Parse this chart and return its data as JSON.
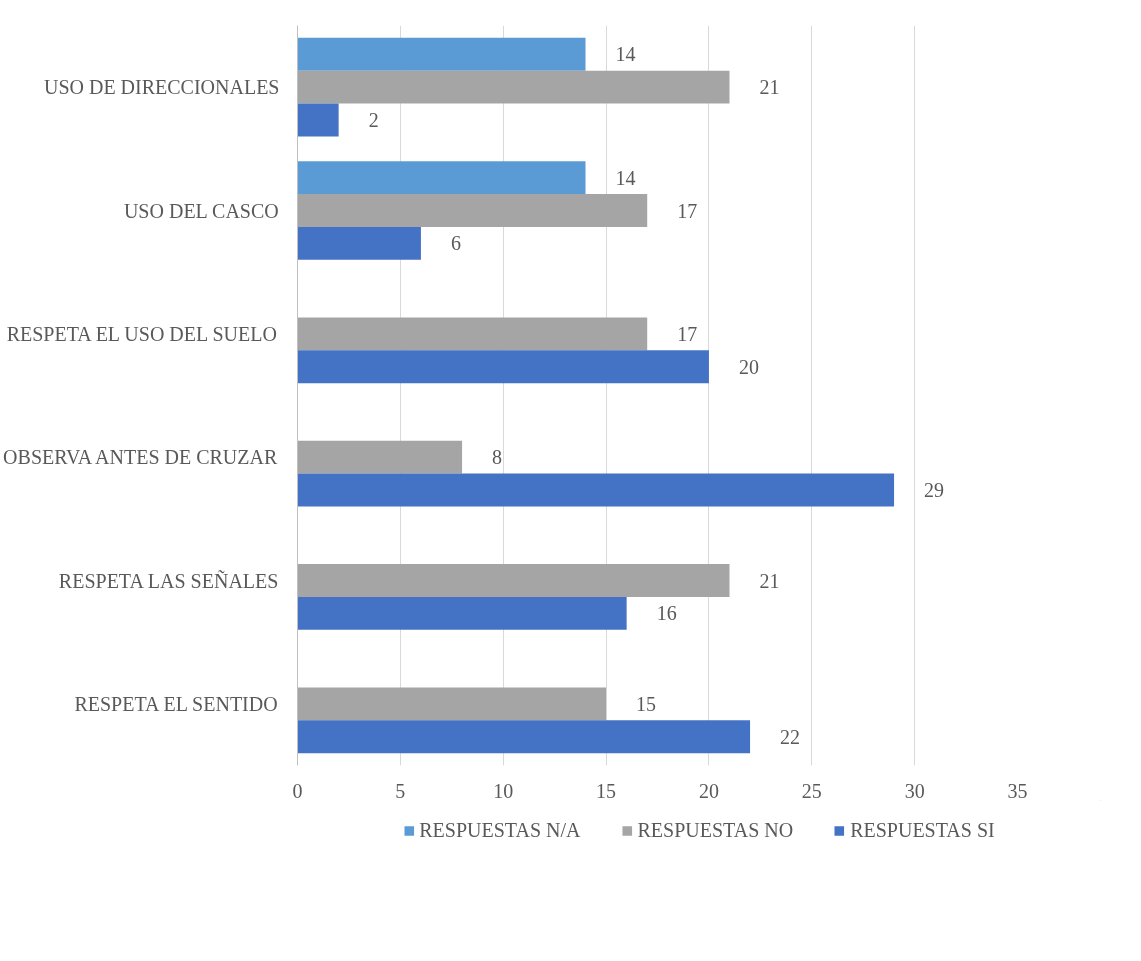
{
  "chart_data": {
    "type": "bar",
    "orientation": "horizontal",
    "categories": [
      "USO DE DIRECCIONALES",
      "USO DEL CASCO",
      "RESPETA EL USO DEL SUELO",
      "OBSERVA ANTES DE CRUZAR",
      "RESPETA LAS SEÑALES",
      "RESPETA EL SENTIDO"
    ],
    "series": [
      {
        "name": "RESPUESTAS N/A",
        "color": "#5b9bd5",
        "values": [
          14,
          14,
          null,
          null,
          null,
          null
        ]
      },
      {
        "name": "RESPUESTAS NO",
        "color": "#a5a5a5",
        "values": [
          21,
          17,
          17,
          8,
          21,
          15
        ]
      },
      {
        "name": "RESPUESTAS SI",
        "color": "#4472c4",
        "values": [
          2,
          6,
          20,
          29,
          16,
          22
        ]
      }
    ],
    "xlim": [
      0,
      35
    ],
    "xticks": [
      0,
      5,
      10,
      15,
      20,
      25,
      30,
      35
    ],
    "grid": "x",
    "legend": "bottom",
    "data_labels": true
  }
}
